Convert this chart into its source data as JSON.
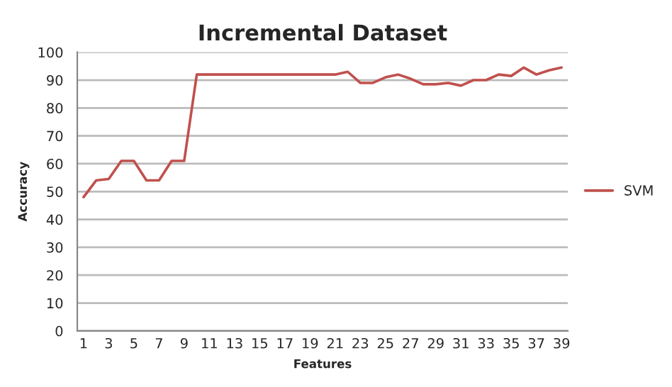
{
  "chart_data": {
    "type": "line",
    "title": "Incremental Dataset",
    "xlabel": "Features",
    "ylabel": "Accuracy",
    "categories": [
      "1",
      null,
      "3",
      null,
      "5",
      null,
      "7",
      null,
      "9",
      null,
      "11",
      null,
      "13",
      null,
      "15",
      null,
      "17",
      null,
      "19",
      null,
      "21",
      null,
      "23",
      null,
      "25",
      null,
      "27",
      null,
      "29",
      null,
      "31",
      null,
      "33",
      null,
      "35",
      null,
      "37",
      null,
      "39"
    ],
    "series": [
      {
        "name": "SVM",
        "color": "#c0504d",
        "values": [
          48,
          54,
          54.5,
          61,
          61,
          54,
          54,
          61,
          61,
          92,
          92,
          92,
          92,
          92,
          92,
          92,
          92,
          92,
          92,
          92,
          92,
          93,
          89,
          89,
          91,
          92,
          90.5,
          88.5,
          88.5,
          89,
          88,
          90,
          90,
          92,
          91.5,
          94.5,
          92,
          93.5,
          94.5
        ]
      }
    ],
    "ylim": [
      0,
      100
    ],
    "yticks": [
      0,
      10,
      20,
      30,
      40,
      50,
      60,
      70,
      80,
      90,
      100
    ],
    "grid": "y",
    "legend": "right",
    "marker": "none",
    "line_style": "solid"
  }
}
